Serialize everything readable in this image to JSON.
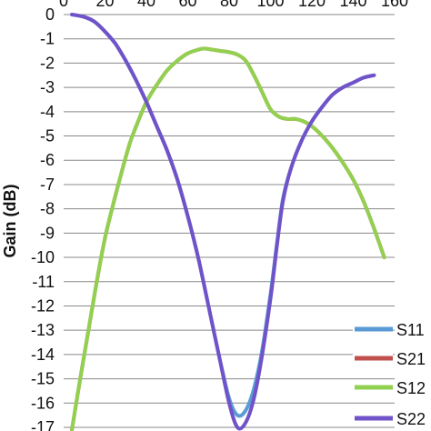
{
  "chart_data": {
    "type": "line",
    "ylabel": "Gain (dB)",
    "xlabel": "",
    "xlim": [
      0,
      160
    ],
    "ylim": [
      -17,
      0
    ],
    "x_ticks": [
      "0",
      "20",
      "40",
      "60",
      "80",
      "100",
      "120",
      "140",
      "160"
    ],
    "y_ticks": [
      "0",
      "-1",
      "-2",
      "-3",
      "-4",
      "-5",
      "-6",
      "-7",
      "-8",
      "-9",
      "-10",
      "-11",
      "-12",
      "-13",
      "-14",
      "-15",
      "-16",
      "-17"
    ],
    "grid": "horizontal",
    "legend_position": "right",
    "series": [
      {
        "name": "S11",
        "color": "#5b9bd5",
        "points": [
          [
            4,
            0
          ],
          [
            10,
            -0.1
          ],
          [
            15,
            -0.3
          ],
          [
            20,
            -0.7
          ],
          [
            25,
            -1.2
          ],
          [
            30,
            -1.9
          ],
          [
            35,
            -2.7
          ],
          [
            40,
            -3.6
          ],
          [
            45,
            -4.6
          ],
          [
            50,
            -5.6
          ],
          [
            55,
            -6.8
          ],
          [
            60,
            -8.3
          ],
          [
            65,
            -10.0
          ],
          [
            70,
            -12.0
          ],
          [
            75,
            -14.0
          ],
          [
            80,
            -15.8
          ],
          [
            84,
            -16.5
          ],
          [
            88,
            -16.3
          ],
          [
            92,
            -15.4
          ],
          [
            96,
            -13.8
          ],
          [
            100,
            -11.5
          ],
          [
            103,
            -9.5
          ],
          [
            106,
            -7.6
          ],
          [
            110,
            -6.3
          ],
          [
            115,
            -5.2
          ],
          [
            120,
            -4.4
          ],
          [
            125,
            -3.8
          ],
          [
            130,
            -3.3
          ],
          [
            135,
            -3.0
          ],
          [
            140,
            -2.8
          ],
          [
            145,
            -2.6
          ],
          [
            150,
            -2.5
          ]
        ]
      },
      {
        "name": "S21",
        "color": "#c0504d",
        "points": [
          [
            4,
            -17.1
          ],
          [
            8,
            -15.0
          ],
          [
            12,
            -13.0
          ],
          [
            16,
            -11.0
          ],
          [
            20,
            -9.2
          ],
          [
            24,
            -7.8
          ],
          [
            28,
            -6.5
          ],
          [
            32,
            -5.3
          ],
          [
            36,
            -4.4
          ],
          [
            40,
            -3.6
          ],
          [
            45,
            -2.9
          ],
          [
            50,
            -2.3
          ],
          [
            55,
            -1.9
          ],
          [
            60,
            -1.6
          ],
          [
            65,
            -1.45
          ],
          [
            68,
            -1.4
          ],
          [
            72,
            -1.45
          ],
          [
            76,
            -1.5
          ],
          [
            80,
            -1.55
          ],
          [
            84,
            -1.65
          ],
          [
            88,
            -1.9
          ],
          [
            92,
            -2.5
          ],
          [
            96,
            -3.2
          ],
          [
            100,
            -3.9
          ],
          [
            104,
            -4.2
          ],
          [
            108,
            -4.3
          ],
          [
            112,
            -4.3
          ],
          [
            116,
            -4.4
          ],
          [
            120,
            -4.6
          ],
          [
            125,
            -5.0
          ],
          [
            130,
            -5.5
          ],
          [
            135,
            -6.1
          ],
          [
            140,
            -6.8
          ],
          [
            145,
            -7.7
          ],
          [
            150,
            -8.8
          ],
          [
            155,
            -10.0
          ]
        ]
      },
      {
        "name": "S12",
        "color": "#92d050",
        "points": [
          [
            4,
            -17.1
          ],
          [
            8,
            -15.0
          ],
          [
            12,
            -13.0
          ],
          [
            16,
            -11.0
          ],
          [
            20,
            -9.2
          ],
          [
            24,
            -7.8
          ],
          [
            28,
            -6.5
          ],
          [
            32,
            -5.3
          ],
          [
            36,
            -4.4
          ],
          [
            40,
            -3.6
          ],
          [
            45,
            -2.9
          ],
          [
            50,
            -2.3
          ],
          [
            55,
            -1.9
          ],
          [
            60,
            -1.6
          ],
          [
            65,
            -1.45
          ],
          [
            68,
            -1.4
          ],
          [
            72,
            -1.45
          ],
          [
            76,
            -1.5
          ],
          [
            80,
            -1.55
          ],
          [
            84,
            -1.65
          ],
          [
            88,
            -1.9
          ],
          [
            92,
            -2.5
          ],
          [
            96,
            -3.2
          ],
          [
            100,
            -3.9
          ],
          [
            104,
            -4.2
          ],
          [
            108,
            -4.3
          ],
          [
            112,
            -4.3
          ],
          [
            116,
            -4.4
          ],
          [
            120,
            -4.6
          ],
          [
            125,
            -5.0
          ],
          [
            130,
            -5.5
          ],
          [
            135,
            -6.1
          ],
          [
            140,
            -6.8
          ],
          [
            145,
            -7.7
          ],
          [
            150,
            -8.8
          ],
          [
            155,
            -10.0
          ]
        ]
      },
      {
        "name": "S22",
        "color": "#7052c9",
        "points": [
          [
            4,
            0
          ],
          [
            10,
            -0.1
          ],
          [
            15,
            -0.3
          ],
          [
            20,
            -0.7
          ],
          [
            25,
            -1.2
          ],
          [
            30,
            -1.9
          ],
          [
            35,
            -2.7
          ],
          [
            40,
            -3.6
          ],
          [
            45,
            -4.6
          ],
          [
            50,
            -5.6
          ],
          [
            55,
            -6.8
          ],
          [
            60,
            -8.3
          ],
          [
            65,
            -10.0
          ],
          [
            70,
            -12.0
          ],
          [
            75,
            -14.0
          ],
          [
            80,
            -16.0
          ],
          [
            84,
            -17.0
          ],
          [
            88,
            -16.8
          ],
          [
            92,
            -15.8
          ],
          [
            96,
            -14.0
          ],
          [
            100,
            -11.7
          ],
          [
            103,
            -9.6
          ],
          [
            106,
            -7.7
          ],
          [
            110,
            -6.3
          ],
          [
            115,
            -5.2
          ],
          [
            120,
            -4.4
          ],
          [
            125,
            -3.8
          ],
          [
            130,
            -3.3
          ],
          [
            135,
            -3.0
          ],
          [
            140,
            -2.8
          ],
          [
            145,
            -2.6
          ],
          [
            150,
            -2.5
          ]
        ]
      }
    ]
  }
}
